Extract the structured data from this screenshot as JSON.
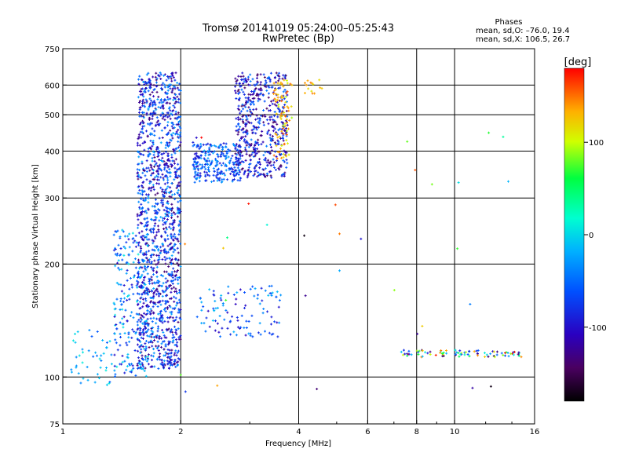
{
  "title": {
    "line1": "Tromsø 20141019 05:24:00–05:25:43",
    "line2": "RwPretec (Bp)"
  },
  "stats": {
    "heading": "Phases",
    "o_line": "mean, sd,O: –76.0, 19.4",
    "x_line": "mean, sd,X: 106.5, 26.7"
  },
  "colorbar": {
    "unit_label": "[deg]",
    "ticks": [
      {
        "value": 100,
        "label": "100"
      },
      {
        "value": 0,
        "label": "0"
      },
      {
        "value": -100,
        "label": "-100"
      }
    ],
    "range": [
      -180,
      180
    ]
  },
  "chart_data": {
    "type": "scatter",
    "xlabel": "Frequency [MHz]",
    "ylabel": "Stationary phase Virtual Height [km]",
    "x_scale": "log",
    "y_scale": "log",
    "xlim": [
      1,
      16
    ],
    "ylim": [
      75,
      750
    ],
    "grid": true,
    "x_ticks": [
      1,
      2,
      4,
      6,
      8,
      10,
      16
    ],
    "x_tick_labels": [
      "1",
      "2",
      "4",
      "6",
      "8",
      "10",
      "16"
    ],
    "y_ticks": [
      75,
      100,
      200,
      300,
      400,
      500,
      600,
      750
    ],
    "y_tick_labels": [
      "75",
      "100",
      "200",
      "300",
      "400",
      "500",
      "600",
      "750"
    ],
    "x_grid": [
      2,
      4,
      6,
      8,
      10
    ],
    "y_grid": [
      100,
      200,
      300,
      400,
      500,
      600
    ],
    "clusters": [
      {
        "x": [
          1.55,
          2.0
        ],
        "y": [
          105,
          650
        ],
        "count": 1400,
        "phase": [
          -140,
          -20
        ]
      },
      {
        "x": [
          1.35,
          1.65
        ],
        "y": [
          100,
          250
        ],
        "count": 220,
        "phase": [
          -110,
          10
        ]
      },
      {
        "x": [
          1.05,
          1.35
        ],
        "y": [
          95,
          135
        ],
        "count": 45,
        "phase": [
          -60,
          10
        ]
      },
      {
        "x": [
          2.15,
          2.85
        ],
        "y": [
          330,
          420
        ],
        "count": 260,
        "phase": [
          -100,
          -20
        ]
      },
      {
        "x": [
          2.75,
          3.75
        ],
        "y": [
          340,
          650
        ],
        "count": 520,
        "phase": [
          -150,
          -40
        ]
      },
      {
        "x": [
          3.45,
          3.85
        ],
        "y": [
          380,
          620
        ],
        "count": 80,
        "phase": [
          90,
          160
        ]
      },
      {
        "x": [
          4.1,
          4.6
        ],
        "y": [
          560,
          620
        ],
        "count": 14,
        "phase": [
          100,
          150
        ]
      },
      {
        "x": [
          2.2,
          3.6
        ],
        "y": [
          128,
          175
        ],
        "count": 110,
        "phase": [
          -110,
          -10
        ]
      },
      {
        "x": [
          7.3,
          14.8
        ],
        "y": [
          113,
          118
        ],
        "count": 85,
        "phase": [
          -180,
          180
        ]
      },
      {
        "x": [
          2.0,
          14.0
        ],
        "y": [
          90,
          450
        ],
        "count": 35,
        "phase": [
          -180,
          180
        ]
      }
    ]
  }
}
